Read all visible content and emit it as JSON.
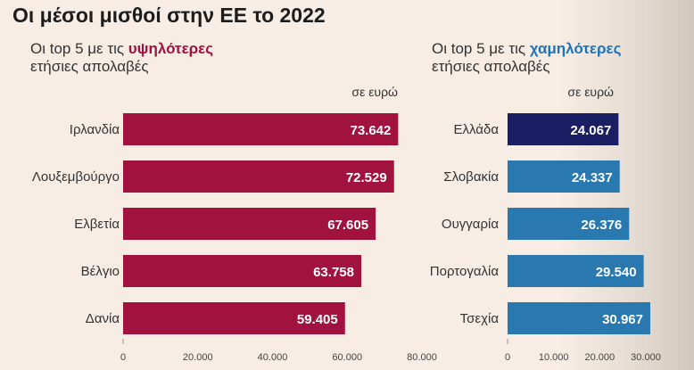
{
  "title": "Οι μέσοι μισθοί στην ΕΕ το 2022",
  "left_panel": {
    "subtitle_prefix": "Οι top 5 με τις ",
    "subtitle_highlight": "υψηλότερες",
    "subtitle_line2": "ετήσιες απολαβές"
  },
  "right_panel": {
    "subtitle_prefix": "Οι top 5 με τις ",
    "subtitle_highlight": "χαμηλότερες",
    "subtitle_line2": "ετήσιες απολαβές"
  },
  "colors": {
    "highest_bars": "#a1123f",
    "lowest_bar_greece": "#1a1f63",
    "lowest_bars": "#2a78b0",
    "highlight_red": "#a1123f",
    "highlight_blue": "#1f74b8"
  },
  "chart_data": [
    {
      "type": "bar",
      "orientation": "horizontal",
      "unit_label": "σε ευρώ",
      "categories": [
        "Ιρλανδία",
        "Λουξεμβούργο",
        "Ελβετία",
        "Βέλγιο",
        "Δανία"
      ],
      "values": [
        73642,
        72529,
        67605,
        63758,
        59405
      ],
      "value_labels": [
        "73.642",
        "72.529",
        "67.605",
        "63.758",
        "59.405"
      ],
      "xlim": [
        0,
        80000
      ],
      "ticks": [
        0,
        20000,
        40000,
        60000,
        80000
      ],
      "tick_labels": [
        "0",
        "20.000",
        "40.000",
        "60.000",
        "80.000"
      ],
      "grid": false
    },
    {
      "type": "bar",
      "orientation": "horizontal",
      "unit_label": "σε ευρώ",
      "categories": [
        "Ελλάδα",
        "Σλοβακία",
        "Ουγγαρία",
        "Πορτογαλία",
        "Τσεχία"
      ],
      "values": [
        24067,
        24337,
        26376,
        29540,
        30967
      ],
      "value_labels": [
        "24.067",
        "24.337",
        "26.376",
        "29.540",
        "30.967"
      ],
      "xlim": [
        0,
        30000
      ],
      "ticks": [
        0,
        10000,
        20000,
        30000
      ],
      "tick_labels": [
        "0",
        "10.000",
        "20.000",
        "30.000"
      ],
      "grid": false
    }
  ]
}
